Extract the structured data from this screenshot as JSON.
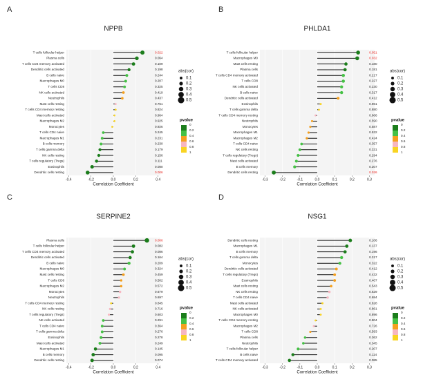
{
  "chart_data": [
    {
      "type": "lollipop",
      "panel_label": "A",
      "title": "NPPB",
      "x_label": "Correlation Coefficient",
      "categories": [
        "T cells follicular helper",
        "Plasma cells",
        "T cells CD4 memory activated",
        "Dendritic cells activated",
        "B cells naive",
        "Macrophages M0",
        "T cells CD8",
        "NK cells activated",
        "Neutrophils",
        "Mast cells resting",
        "T cells CD4 memory resting",
        "Mast cells activated",
        "Macrophages M2",
        "Monocytes",
        "T cells CD4 naive",
        "Macrophages M1",
        "B cells memory",
        "T cells gamma delta",
        "NK cells resting",
        "T cells regulatory (Tregs)",
        "Eosinophils",
        "Dendritic cells resting"
      ],
      "values": [
        0.26,
        0.21,
        0.18,
        0.14,
        0.12,
        0.11,
        0.1,
        0.09,
        0.08,
        0.02,
        0.02,
        0.01,
        0.01,
        -0.01,
        -0.09,
        -0.1,
        -0.11,
        -0.12,
        -0.13,
        -0.15,
        -0.19,
        -0.23
      ],
      "pvalues": [
        0.022,
        0.064,
        0.109,
        0.198,
        0.244,
        0.207,
        0.325,
        0.419,
        0.437,
        0.761,
        0.824,
        0.964,
        0.925,
        0.926,
        0.245,
        0.231,
        0.23,
        0.179,
        0.156,
        0.111,
        0.08,
        0.006
      ],
      "pvalue_labels": [
        "0.022",
        "0.064",
        "0.109",
        "0.198",
        "0.244",
        "0.207",
        "0.325",
        "0.419",
        "0.437",
        "0.761",
        "0.824",
        "0.964",
        "0.925",
        "0.926",
        "0.245",
        "0.231",
        "0.230",
        "0.179",
        "0.156",
        "0.111",
        "0.080",
        "0.006"
      ],
      "significant_rows": [
        0,
        21
      ],
      "significant_color": "#e8251f",
      "xlim": [
        -0.42,
        0.42
      ],
      "xticks": [
        -0.4,
        -0.2,
        {
          "value": 0,
          "label": "0.0"
        },
        0.2,
        0.4
      ],
      "size_legend": {
        "title": "abs(cor)",
        "values": [
          0.1,
          0.2,
          0.3,
          0.4,
          0.5
        ]
      },
      "color_legend": {
        "title": "pvalue",
        "ticks": [
          0,
          0.2,
          0.4,
          0.6,
          0.8,
          1
        ],
        "colors": [
          "#1b7d1b",
          "#45c145",
          "#f5a01e",
          "#f7b6c0",
          "#f9d423"
        ]
      }
    },
    {
      "type": "lollipop",
      "panel_label": "B",
      "title": "PHLDA1",
      "x_label": "Correlation Coefficient",
      "categories": [
        "T cells follicular helper",
        "Macrophages M0",
        "Mast cells resting",
        "Plasma cells",
        "T cells CD4 memory activated",
        "T cells CD8",
        "NK cells activated",
        "B cells naive",
        "Dendritic cells activated",
        "Eosinophils",
        "T cells gamma delta",
        "T cells CD4 memory resting",
        "Neutrophils",
        "Monocytes",
        "Macrophages M1",
        "Macrophages M2",
        "T cells CD4 naive",
        "NK cells resting",
        "T cells regulatory (Tregs)",
        "Mast cells activated",
        "B cells memory",
        "Dendritic cells resting"
      ],
      "values": [
        0.235,
        0.23,
        0.165,
        0.16,
        0.15,
        0.15,
        0.14,
        0.14,
        0.12,
        0.02,
        0.01,
        -0.01,
        -0.03,
        -0.04,
        -0.05,
        -0.06,
        -0.09,
        -0.1,
        -0.11,
        -0.12,
        -0.13,
        -0.25
      ],
      "pvalues": [
        0.051,
        0.032,
        0.18,
        0.181,
        0.217,
        0.227,
        0.23,
        0.317,
        0.412,
        0.961,
        0.88,
        0.666,
        0.59,
        0.587,
        0.532,
        0.424,
        0.357,
        0.331,
        0.294,
        0.276,
        0.207,
        0.026
      ],
      "pvalue_labels": [
        "0.051",
        "0.032",
        "0.180",
        "0.181",
        "0.217",
        "0.227",
        "0.230",
        "0.317",
        "0.412",
        "0.961",
        "0.880",
        "0.666",
        "0.590",
        "0.587",
        "0.532",
        "0.424",
        "0.357",
        "0.331",
        "0.294",
        "0.276",
        "0.207",
        "0.026"
      ],
      "significant_rows": [
        0,
        1,
        21
      ],
      "significant_color": "#e8251f",
      "xlim": [
        -0.33,
        0.33
      ],
      "xticks": [
        -0.3,
        -0.2,
        -0.1,
        {
          "value": 0,
          "label": "0.0"
        },
        0.1,
        0.2,
        0.3
      ],
      "size_legend": {
        "title": "abs(cor)",
        "values": [
          0.1,
          0.2,
          0.3,
          0.4,
          0.5
        ]
      },
      "color_legend": {
        "title": "pvalue",
        "ticks": [
          0,
          0.2,
          0.4,
          0.6,
          0.8,
          1
        ],
        "colors": [
          "#1b7d1b",
          "#45c145",
          "#f5a01e",
          "#f7b6c0",
          "#f9d423"
        ]
      }
    },
    {
      "type": "lollipop",
      "panel_label": "C",
      "title": "SERPINE2",
      "x_label": "Correlation Coefficient",
      "categories": [
        "Plasma cells",
        "T cells follicular helper",
        "T cells CD4 memory activated",
        "Dendritic cells activated",
        "B cells naive",
        "Macrophages M0",
        "Mast cells resting",
        "T cells CD8",
        "Macrophages M2",
        "Monocytes",
        "Neutrophils",
        "T cells CD4 memory resting",
        "NK cells resting",
        "T cells regulatory (Tregs)",
        "NK cells activated",
        "T cells CD4 naive",
        "T cells gamma delta",
        "Eosinophils",
        "Mast cells activated",
        "Macrophages M1",
        "B cells memory",
        "Dendritic cells resting"
      ],
      "values": [
        0.3,
        0.18,
        0.17,
        0.15,
        0.14,
        0.1,
        0.09,
        0.07,
        0.07,
        0.06,
        0.05,
        -0.02,
        -0.03,
        -0.04,
        -0.09,
        -0.1,
        -0.1,
        -0.11,
        -0.12,
        -0.16,
        -0.18,
        -0.19
      ],
      "pvalues": [
        0.006,
        0.082,
        0.086,
        0.164,
        0.209,
        0.324,
        0.459,
        0.502,
        0.572,
        0.679,
        0.697,
        0.845,
        0.716,
        0.603,
        0.291,
        0.364,
        0.276,
        0.278,
        0.249,
        0.145,
        0.095,
        0.074
      ],
      "pvalue_labels": [
        "0.006",
        "0.082",
        "0.086",
        "0.164",
        "0.209",
        "0.324",
        "0.459",
        "0.502",
        "0.572",
        "0.679",
        "0.697",
        "0.845",
        "0.716",
        "0.603",
        "0.291",
        "0.364",
        "0.276",
        "0.278",
        "0.249",
        "0.145",
        "0.095",
        "0.074"
      ],
      "significant_rows": [
        0
      ],
      "significant_color": "#e8251f",
      "xlim": [
        -0.42,
        0.42
      ],
      "xticks": [
        -0.4,
        -0.2,
        {
          "value": 0,
          "label": "0.0"
        },
        0.2,
        0.4
      ],
      "size_legend": {
        "title": "abs(cor)",
        "values": [
          0.1,
          0.2,
          0.3,
          0.4,
          0.5
        ]
      },
      "color_legend": {
        "title": "pvalue",
        "ticks": [
          0,
          0.2,
          0.4,
          0.6,
          0.8,
          1
        ],
        "colors": [
          "#1b7d1b",
          "#45c145",
          "#f5a01e",
          "#f7b6c0",
          "#f9d423"
        ]
      }
    },
    {
      "type": "lollipop",
      "panel_label": "D",
      "title": "NSG1",
      "x_label": "Correlation Coefficient",
      "categories": [
        "Dendritic cells resting",
        "Macrophages M1",
        "B cells memory",
        "T cells gamma delta",
        "Monocytes",
        "Dendritic cells activated",
        "T cells regulatory (Tregs)",
        "Eosinophils",
        "Mast cells resting",
        "NK cells resting",
        "T cells CD4 naive",
        "Mast cells activated",
        "NK cells activated",
        "Macrophages M0",
        "T cells CD4 memory resting",
        "Macrophages M2",
        "T cells CD8",
        "Plasma cells",
        "Neutrophils",
        "T cells follicular helper",
        "B cells naive",
        "T cells CD4 memory activated"
      ],
      "values": [
        0.19,
        0.17,
        0.16,
        0.14,
        0.13,
        0.11,
        0.1,
        0.1,
        0.08,
        0.07,
        0.06,
        0.03,
        0.02,
        0.02,
        -0.01,
        -0.02,
        -0.04,
        -0.07,
        -0.08,
        -0.11,
        -0.14,
        -0.16
      ],
      "pvalues": [
        0.106,
        0.137,
        0.196,
        0.317,
        0.322,
        0.412,
        0.432,
        0.407,
        0.543,
        0.629,
        0.684,
        0.828,
        0.861,
        0.896,
        0.804,
        0.726,
        0.593,
        0.362,
        0.345,
        0.207,
        0.114,
        0.085
      ],
      "pvalue_labels": [
        "0.106",
        "0.137",
        "0.196",
        "0.317",
        "0.322",
        "0.412",
        "0.432",
        "0.407",
        "0.543",
        "0.629",
        "0.684",
        "0.828",
        "0.861",
        "0.896",
        "0.804",
        "0.726",
        "0.593",
        "0.362",
        "0.345",
        "0.207",
        "0.114",
        "0.085"
      ],
      "significant_rows": [],
      "significant_color": "#e8251f",
      "xlim": [
        -0.33,
        0.33
      ],
      "xticks": [
        -0.3,
        -0.2,
        -0.1,
        {
          "value": 0,
          "label": "0.0"
        },
        0.1,
        0.2,
        0.3
      ],
      "size_legend": {
        "title": "abs(cor)",
        "values": [
          0.1,
          0.2,
          0.3,
          0.4,
          0.5
        ]
      },
      "color_legend": {
        "title": "pvalue",
        "ticks": [
          0,
          0.2,
          0.4,
          0.6,
          0.8,
          1
        ],
        "colors": [
          "#1b7d1b",
          "#45c145",
          "#f5a01e",
          "#f7b6c0",
          "#f9d423"
        ]
      }
    }
  ]
}
